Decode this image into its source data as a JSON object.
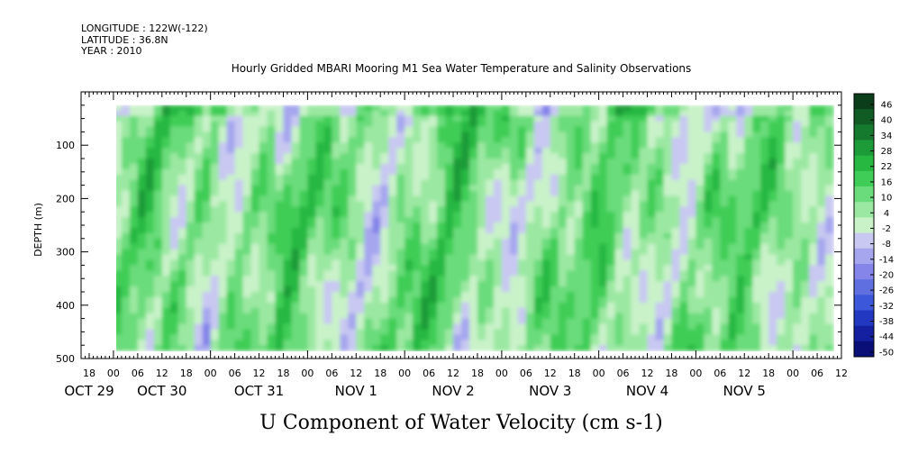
{
  "header": {
    "longitude": "LONGITUDE : 122W(-122)",
    "latitude": "LATITUDE : 36.8N",
    "year": "YEAR : 2010",
    "title": "Hourly Gridded MBARI Mooring M1 Sea Water Temperature and Salinity Observations"
  },
  "chart_data": {
    "type": "heatmap",
    "title": "Hourly Gridded MBARI Mooring M1 Sea Water Temperature and Salinity Observations",
    "xlabel": "U Component of Water Velocity (cm s-1)",
    "ylabel": "DEPTH (m)",
    "x_unit": "hours since 2010-10-29 00:00",
    "xlim": [
      -8,
      180
    ],
    "data_x_range": [
      0,
      178
    ],
    "ylim": [
      500,
      0
    ],
    "data_y_range": [
      25,
      485
    ],
    "y_ticks": [
      100,
      200,
      300,
      400,
      500
    ],
    "y_tick_labels": [
      "100",
      "200",
      "300",
      "400",
      "500"
    ],
    "x_hour_labels": [
      "18",
      "00",
      "06",
      "12",
      "18",
      "00",
      "06",
      "12",
      "18",
      "00",
      "06",
      "12",
      "18",
      "00",
      "06",
      "12",
      "18",
      "00",
      "06",
      "12",
      "18",
      "00",
      "06",
      "12",
      "18",
      "00",
      "06",
      "12",
      "18",
      "00",
      "06",
      "12"
    ],
    "x_hour_positions": [
      -6,
      0,
      6,
      12,
      18,
      24,
      30,
      36,
      42,
      48,
      54,
      60,
      66,
      72,
      78,
      84,
      90,
      96,
      102,
      108,
      114,
      120,
      126,
      132,
      138,
      144,
      150,
      156,
      162,
      168,
      174,
      180
    ],
    "date_labels": [
      {
        "text": "OCT 29",
        "x": -6
      },
      {
        "text": "OCT 30",
        "x": 12
      },
      {
        "text": "OCT 31",
        "x": 36
      },
      {
        "text": "NOV  1",
        "x": 60
      },
      {
        "text": "NOV  2",
        "x": 84
      },
      {
        "text": "NOV  3",
        "x": 108
      },
      {
        "text": "NOV  4",
        "x": 132
      },
      {
        "text": "NOV  5",
        "x": 156
      }
    ],
    "colorbar": {
      "levels": [
        "46",
        "40",
        "34",
        "28",
        "22",
        "16",
        "10",
        "4",
        "-2",
        "-8",
        "-14",
        "-20",
        "-26",
        "-32",
        "-38",
        "-44",
        "-50"
      ],
      "colors": [
        "#0b3d1a",
        "#115c25",
        "#167a2e",
        "#1c9b38",
        "#27b842",
        "#3fcd57",
        "#6bdc7b",
        "#9be8a2",
        "#c9f2c9",
        "#c8c8f2",
        "#a6a6ef",
        "#8484e9",
        "#5f6fe0",
        "#3c57d9",
        "#2238c0",
        "#1520a0",
        "#0a0f78"
      ]
    }
  }
}
